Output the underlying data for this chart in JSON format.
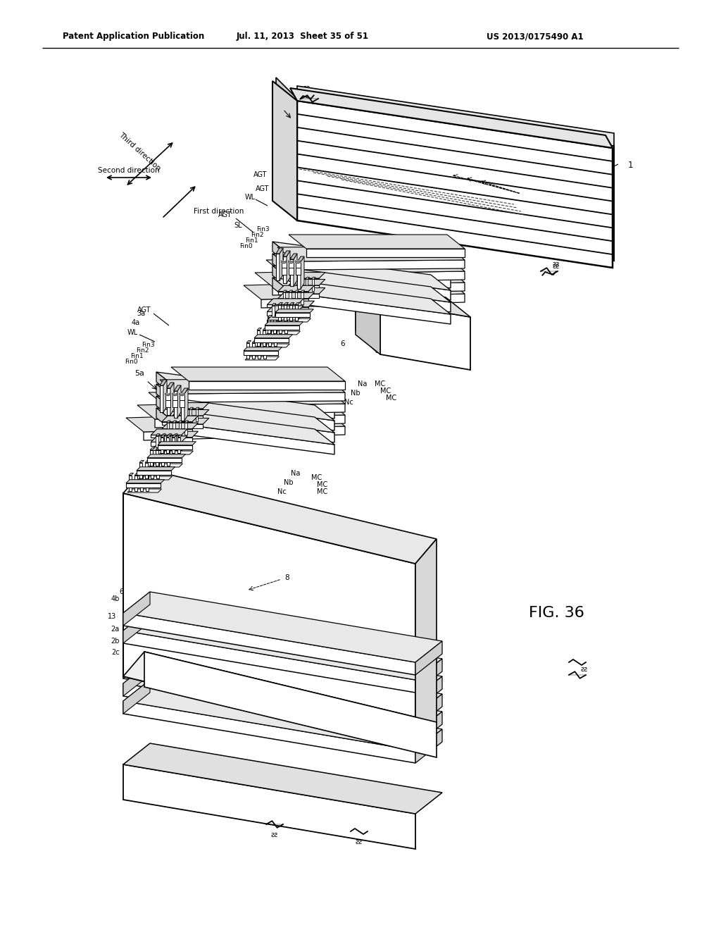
{
  "header_left": "Patent Application Publication",
  "header_mid": "Jul. 11, 2013  Sheet 35 of 51",
  "header_right": "US 2013/0175490 A1",
  "figure_label": "FIG. 36",
  "bg_color": "#ffffff",
  "lc": "#000000",
  "tc": "#000000"
}
